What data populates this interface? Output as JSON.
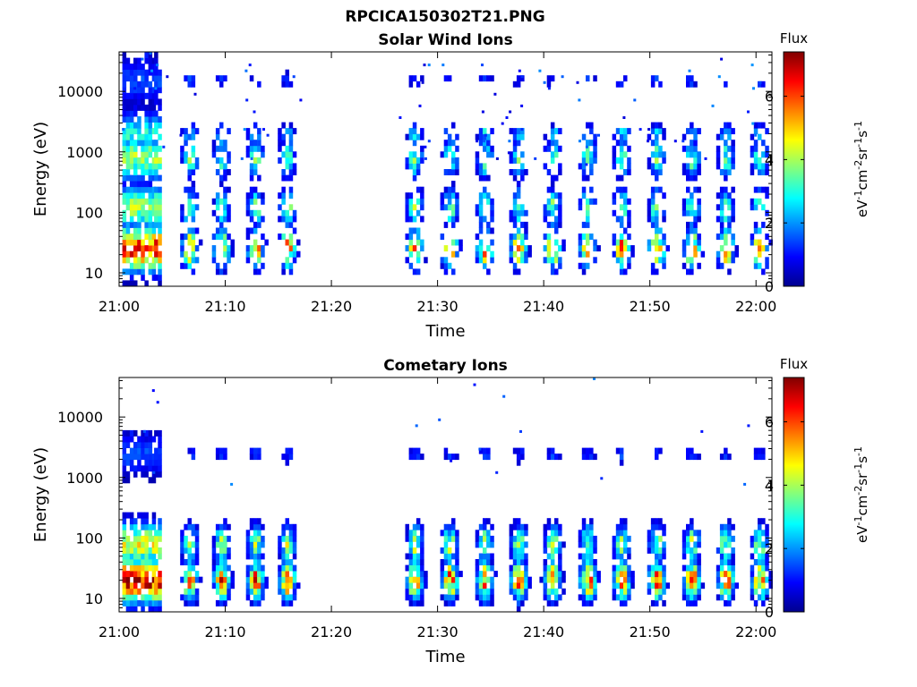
{
  "figure_title": "RPCICA150302T21.PNG",
  "colors": {
    "colormap": "jet",
    "background": "#ffffff",
    "axes": "#000000"
  },
  "chart_data": [
    {
      "type": "heatmap",
      "title": "Solar Wind Ions",
      "xlabel": "Time",
      "ylabel": "Energy (eV)",
      "x_tick_labels": [
        "21:00",
        "21:10",
        "21:20",
        "21:30",
        "21:40",
        "21:50",
        "22:00"
      ],
      "x_tick_minutes": [
        0,
        10,
        20,
        30,
        40,
        50,
        60
      ],
      "xlim_minutes": [
        0,
        61.5
      ],
      "y_scale": "log",
      "y_tick_labels": [
        "10",
        "100",
        "1000",
        "10000"
      ],
      "y_tick_values": [
        10,
        100,
        1000,
        10000
      ],
      "ylim": [
        6,
        45000
      ],
      "colorbar": {
        "label_top": "Flux",
        "label": "eV-1cm-2sr-1s-1",
        "ticks": [
          0,
          2,
          4,
          6
        ],
        "range": [
          0,
          7.4
        ]
      },
      "pulse_start_minutes": [
        5.8,
        8.8,
        12.0,
        15.0,
        27.0,
        30.3,
        33.6,
        36.8,
        40.0,
        43.3,
        46.5,
        49.8,
        53.1,
        56.3,
        59.5
      ],
      "data_gap_minutes": [
        17,
        26.3
      ],
      "energy_bands": [
        {
          "center_eV": 25,
          "peak_flux": 6.5
        },
        {
          "center_eV": 120,
          "peak_flux": 4.0
        },
        {
          "center_eV": 800,
          "peak_flux": 4.0
        },
        {
          "center_eV": 2000,
          "peak_flux": 3.0
        },
        {
          "center_eV": 15000,
          "peak_flux": 1.5
        }
      ]
    },
    {
      "type": "heatmap",
      "title": "Cometary Ions",
      "xlabel": "Time",
      "ylabel": "Energy (eV)",
      "x_tick_labels": [
        "21:00",
        "21:10",
        "21:20",
        "21:30",
        "21:40",
        "21:50",
        "22:00"
      ],
      "x_tick_minutes": [
        0,
        10,
        20,
        30,
        40,
        50,
        60
      ],
      "xlim_minutes": [
        0,
        61.5
      ],
      "y_scale": "log",
      "y_tick_labels": [
        "10",
        "100",
        "1000",
        "10000"
      ],
      "y_tick_values": [
        10,
        100,
        1000,
        10000
      ],
      "ylim": [
        6,
        45000
      ],
      "colorbar": {
        "label_top": "Flux",
        "label": "eV-1cm-2sr-1s-1",
        "ticks": [
          0,
          2,
          4,
          6
        ],
        "range": [
          0,
          7.4
        ]
      },
      "pulse_start_minutes": [
        5.8,
        8.8,
        12.0,
        15.0,
        27.0,
        30.3,
        33.6,
        36.8,
        40.0,
        43.3,
        46.5,
        49.8,
        53.1,
        56.3,
        59.5
      ],
      "data_gap_minutes": [
        17,
        26.3
      ],
      "energy_bands": [
        {
          "center_eV": 20,
          "peak_flux": 6.8
        },
        {
          "center_eV": 80,
          "peak_flux": 4.5
        },
        {
          "center_eV": 2400,
          "peak_flux": 1.5
        }
      ]
    }
  ]
}
